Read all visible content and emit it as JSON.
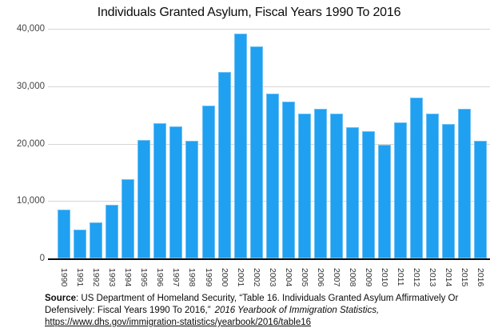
{
  "title": "Individuals Granted Asylum, Fiscal Years 1990 To 2016",
  "colors": {
    "bar": "#1fa0f0",
    "gridline": "#d5d5d5",
    "axis_line": "#0a0a0a",
    "tick_text": "#454545",
    "background": "#ffffff"
  },
  "y_axis": {
    "tick_labels": [
      "0",
      "10,000",
      "20,000",
      "30,000",
      "40,000"
    ]
  },
  "chart_data": {
    "type": "bar",
    "title": "Individuals Granted Asylum, Fiscal Years 1990 To 2016",
    "categories": [
      "1990",
      "1991",
      "1992",
      "1993",
      "1994",
      "1995",
      "1996",
      "1997",
      "1998",
      "1999",
      "2000",
      "2001",
      "2002",
      "2003",
      "2004",
      "2005",
      "2006",
      "2007",
      "2008",
      "2009",
      "2010",
      "2011",
      "2012",
      "2013",
      "2014",
      "2015",
      "2016"
    ],
    "values": [
      8472,
      5035,
      6307,
      9414,
      13836,
      20683,
      23524,
      22939,
      20516,
      26578,
      32476,
      39146,
      36894,
      28714,
      27321,
      25257,
      26113,
      25270,
      22930,
      22219,
      19766,
      23669,
      28026,
      25199,
      23374,
      26124,
      20455
    ],
    "xlabel": "",
    "ylabel": "",
    "ylim": [
      0,
      40000
    ],
    "yticks": [
      0,
      10000,
      20000,
      30000,
      40000
    ],
    "grid": true,
    "legend": "none",
    "bar_color": "#1fa0f0"
  },
  "source": {
    "label": "Source",
    "text_regular": ": US Department of Homeland Security, “Table 16. Individuals Granted Asylum Affirmatively Or Defensively: Fiscal Years 1990 To 2016,”",
    "text_italic": "2016 Yearbook of Immigration Statistics,",
    "link": "https://www.dhs.gov/immigration-statistics/yearbook/2016/table16"
  }
}
